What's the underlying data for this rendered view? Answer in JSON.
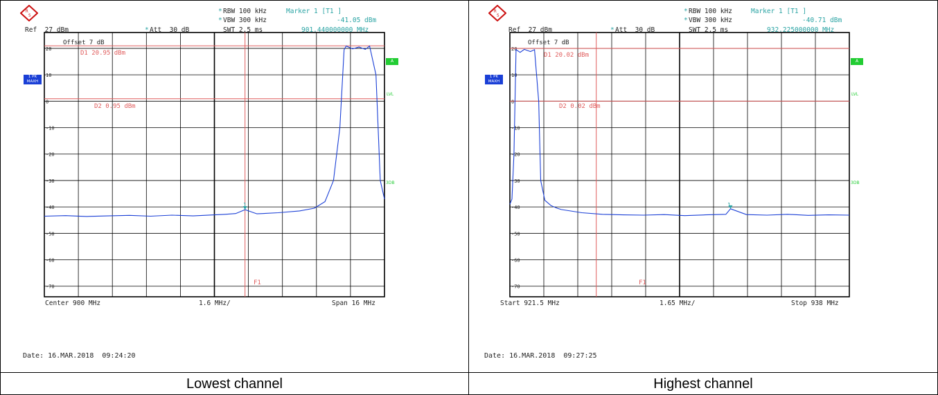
{
  "colors": {
    "trace": "#1a3fd6",
    "line": "#e05c5c",
    "grid": "#000000",
    "readout": "#29a3a3",
    "indicator": "#22cc33"
  },
  "panels": [
    {
      "rbw": "RBW 100 kHz",
      "vbw": "VBW 300 kHz",
      "swt": "SWT 2.5 ms",
      "ref": "Ref  27 dBm",
      "att": "Att  30 dB",
      "marker_title": "Marker 1 [T1 ]",
      "marker_level": "-41.05 dBm",
      "marker_freq": "901.440000000 MHz",
      "offset": "Offset  7 dB",
      "d1": "D1 20.95 dBm",
      "d2": "D2 0.95 dBm",
      "trace_tag": "1 PK\nMAXH",
      "side_a": "A",
      "side_lvl": "LVL",
      "side_3db": "3DB",
      "f1": "F1",
      "marker_num": "1",
      "bottom_left": "Center 900 MHz",
      "bottom_mid": "1.6 MHz/",
      "bottom_right": "Span 16 MHz",
      "date": "Date: 16.MAR.2018  09:24:20",
      "caption": "Lowest channel"
    },
    {
      "rbw": "RBW 100 kHz",
      "vbw": "VBW 300 kHz",
      "swt": "SWT 2.5 ms",
      "ref": "Ref  27 dBm",
      "att": "Att  30 dB",
      "marker_title": "Marker 1 [T1 ]",
      "marker_level": "-40.71 dBm",
      "marker_freq": "932.225000000 MHz",
      "offset": "Offset  7 dB",
      "d1": "D1 20.02 dBm",
      "d2": "D2 0.02 dBm",
      "trace_tag": "1 PK\nMAXH",
      "side_a": "A",
      "side_lvl": "LVL",
      "side_3db": "3DB",
      "f1": "F1",
      "marker_num": "1",
      "bottom_left": "Start 921.5 MHz",
      "bottom_mid": "1.65 MHz/",
      "bottom_right": "Stop 938 MHz",
      "date": "Date: 16.MAR.2018  09:27:25",
      "caption": "Highest channel"
    }
  ],
  "chart_data": [
    {
      "type": "line",
      "x_unit": "MHz",
      "y_unit": "dBm",
      "xlim": [
        892,
        908
      ],
      "ylim": [
        -74,
        26
      ],
      "y_ticks": [
        20,
        10,
        0,
        -10,
        -20,
        -30,
        -40,
        -50,
        -60,
        -70
      ],
      "d1_level": 20.95,
      "d2_level": 0.95,
      "f1": 901.44,
      "marker": {
        "x": 901.44,
        "y": -41.05
      },
      "series": [
        {
          "x": [
            892,
            893,
            894,
            895,
            896,
            897,
            898,
            899,
            900,
            900.5,
            901,
            901.44,
            902,
            903,
            904,
            904.7,
            905.2,
            905.6,
            905.9,
            906.1,
            906.2,
            906.5,
            906.8,
            907.1,
            907.3,
            907.6,
            907.8,
            908
          ],
          "y": [
            -43.5,
            -43.3,
            -43.6,
            -43.4,
            -43.2,
            -43.5,
            -43.1,
            -43.4,
            -43.0,
            -42.8,
            -42.5,
            -41.05,
            -42.6,
            -42.2,
            -41.5,
            -40.5,
            -38,
            -30,
            -10,
            19.5,
            20.9,
            19.8,
            20.5,
            19.6,
            20.9,
            10,
            -30,
            -37
          ]
        }
      ]
    },
    {
      "type": "line",
      "x_unit": "MHz",
      "y_unit": "dBm",
      "xlim": [
        921.5,
        938
      ],
      "ylim": [
        -74,
        26
      ],
      "y_ticks": [
        20,
        10,
        0,
        -10,
        -20,
        -30,
        -40,
        -50,
        -60,
        -70
      ],
      "d1_level": 20.02,
      "d2_level": 0.02,
      "f1": 925.7,
      "marker": {
        "x": 932.225,
        "y": -40.71
      },
      "series": [
        {
          "x": [
            921.5,
            921.6,
            921.7,
            921.8,
            922.0,
            922.2,
            922.5,
            922.7,
            922.9,
            923.0,
            923.2,
            923.5,
            923.8,
            924,
            925,
            926,
            927,
            928,
            929,
            930,
            931,
            932,
            932.225,
            933,
            934,
            935,
            936,
            937,
            938
          ],
          "y": [
            -39,
            -37,
            -20,
            19.5,
            18.5,
            19.6,
            18.8,
            19.5,
            0,
            -30,
            -37.5,
            -39.5,
            -40.5,
            -41,
            -42.2,
            -42.8,
            -43.0,
            -43.1,
            -42.9,
            -43.3,
            -43.0,
            -42.8,
            -40.71,
            -42.9,
            -43.1,
            -42.8,
            -43.2,
            -43.0,
            -43.1
          ]
        }
      ]
    }
  ]
}
